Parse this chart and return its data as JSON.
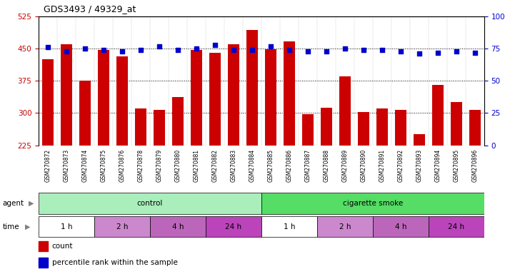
{
  "title": "GDS3493 / 49329_at",
  "samples": [
    "GSM270872",
    "GSM270873",
    "GSM270874",
    "GSM270875",
    "GSM270876",
    "GSM270878",
    "GSM270879",
    "GSM270880",
    "GSM270881",
    "GSM270882",
    "GSM270883",
    "GSM270884",
    "GSM270885",
    "GSM270886",
    "GSM270887",
    "GSM270888",
    "GSM270889",
    "GSM270890",
    "GSM270891",
    "GSM270892",
    "GSM270893",
    "GSM270894",
    "GSM270895",
    "GSM270896"
  ],
  "counts": [
    425,
    460,
    375,
    447,
    432,
    310,
    308,
    338,
    447,
    440,
    460,
    493,
    448,
    467,
    297,
    313,
    386,
    303,
    310,
    308,
    250,
    365,
    325,
    308
  ],
  "percentile_ranks": [
    76,
    73,
    75,
    74,
    73,
    74,
    77,
    74,
    75,
    78,
    74,
    74,
    77,
    74,
    73,
    73,
    75,
    74,
    74,
    73,
    71,
    72,
    73,
    72
  ],
  "ylim_left": [
    225,
    525
  ],
  "ylim_right": [
    0,
    100
  ],
  "yticks_left": [
    225,
    300,
    375,
    450,
    525
  ],
  "yticks_right": [
    0,
    25,
    50,
    75,
    100
  ],
  "bar_color": "#cc0000",
  "dot_color": "#0000cc",
  "plot_bg": "#ffffff",
  "label_bg": "#cccccc",
  "agent_groups": [
    {
      "label": "control",
      "color": "#aaeebb",
      "start": 0,
      "end": 12
    },
    {
      "label": "cigarette smoke",
      "color": "#55dd66",
      "start": 12,
      "end": 24
    }
  ],
  "time_colors": {
    "1 h": "#ffffff",
    "2 h": "#cc88cc",
    "4 h": "#bb66bb",
    "24 h": "#bb44bb"
  },
  "time_groups": [
    {
      "label": "1 h",
      "start": 0,
      "end": 3
    },
    {
      "label": "2 h",
      "start": 3,
      "end": 6
    },
    {
      "label": "4 h",
      "start": 6,
      "end": 9
    },
    {
      "label": "24 h",
      "start": 9,
      "end": 12
    },
    {
      "label": "1 h",
      "start": 12,
      "end": 15
    },
    {
      "label": "2 h",
      "start": 15,
      "end": 18
    },
    {
      "label": "4 h",
      "start": 18,
      "end": 21
    },
    {
      "label": "24 h",
      "start": 21,
      "end": 24
    }
  ],
  "legend_items": [
    {
      "label": "count",
      "color": "#cc0000"
    },
    {
      "label": "percentile rank within the sample",
      "color": "#0000cc"
    }
  ]
}
